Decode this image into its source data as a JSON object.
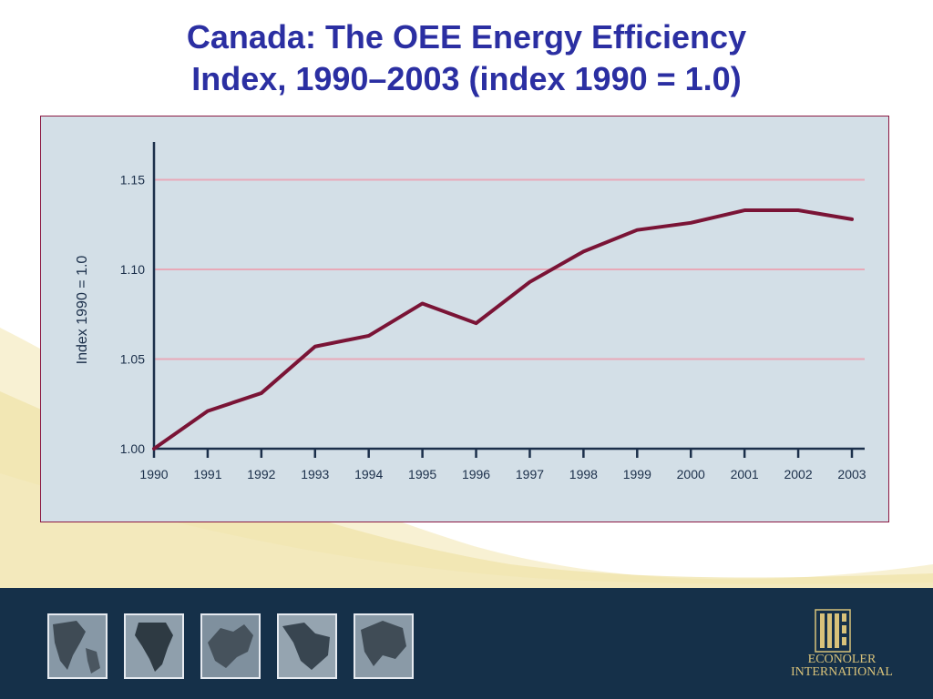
{
  "slide": {
    "title_line1": "Canada:  The OEE Energy Efficiency",
    "title_line2": "Index, 1990–2003 (index 1990 = 1.0)"
  },
  "chart_data": {
    "type": "line",
    "title": "",
    "xlabel": "",
    "ylabel": "Index 1990 = 1.0",
    "categories": [
      "1990",
      "1991",
      "1992",
      "1993",
      "1994",
      "1995",
      "1996",
      "1997",
      "1998",
      "1999",
      "2000",
      "2001",
      "2002",
      "2003"
    ],
    "series": [
      {
        "values": [
          1.0,
          1.021,
          1.031,
          1.057,
          1.063,
          1.081,
          1.07,
          1.093,
          1.11,
          1.122,
          1.126,
          1.133,
          1.133,
          1.128
        ]
      }
    ],
    "yticks": [
      "1.00",
      "1.05",
      "1.10",
      "1.15"
    ],
    "ylim": [
      1.0,
      1.165
    ],
    "grid": true,
    "colors": {
      "line": "#7a1436",
      "grid": "#e8a9b8",
      "axis": "#1b2f4a",
      "panel": "#d3dfe7"
    }
  },
  "footer": {
    "brand_line1": "ECONOLER",
    "brand_line2": "INTERNATIONAL",
    "logo_icon": "econoler-grid-logo-icon",
    "map_icons": [
      "north-america-map-icon",
      "africa-map-icon",
      "europe-map-icon",
      "middle-east-map-icon",
      "east-asia-map-icon"
    ],
    "colors": {
      "band": "#153049",
      "brand": "#d8c27a"
    }
  }
}
